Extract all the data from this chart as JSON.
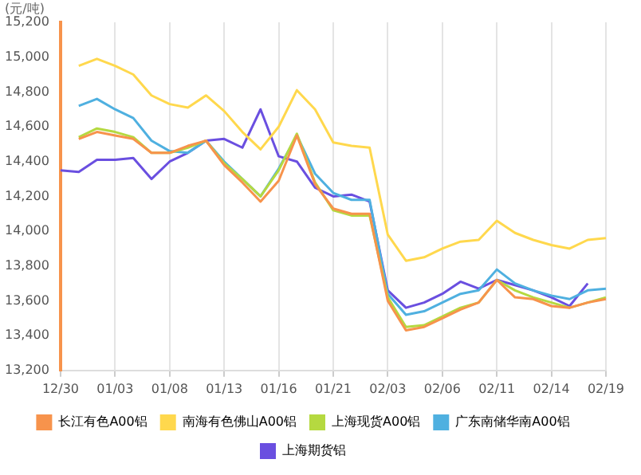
{
  "chart_data": {
    "type": "line",
    "ylabel": "(元/吨)",
    "categories": [
      "12/30",
      null,
      null,
      "01/03",
      null,
      null,
      "01/08",
      null,
      null,
      "01/13",
      null,
      null,
      "01/16",
      null,
      null,
      "01/21",
      null,
      null,
      "02/03",
      null,
      null,
      "02/06",
      null,
      null,
      "02/11",
      null,
      null,
      "02/14",
      null,
      null,
      "02/19"
    ],
    "series": [
      {
        "name": "长江有色A00铝",
        "color": "#f7934c",
        "values": [
          null,
          14530,
          14570,
          14550,
          14530,
          14450,
          14450,
          14490,
          14520,
          14380,
          14280,
          14170,
          14290,
          14550,
          14270,
          14130,
          14100,
          14100,
          13600,
          13430,
          13450,
          13500,
          13550,
          13590,
          13720,
          13620,
          13610,
          13570,
          13560,
          13590,
          13610
        ]
      },
      {
        "name": "南海有色佛山A00铝",
        "color": "#ffd84d",
        "values": [
          null,
          14950,
          14990,
          14950,
          14900,
          14780,
          14730,
          14710,
          14780,
          14690,
          14570,
          14470,
          14600,
          14810,
          14700,
          14510,
          14490,
          14480,
          13980,
          13830,
          13850,
          13900,
          13940,
          13950,
          14060,
          13990,
          13950,
          13920,
          13900,
          13950,
          13960
        ]
      },
      {
        "name": "上海现货A00铝",
        "color": "#b5d940",
        "values": [
          null,
          14540,
          14590,
          14570,
          14540,
          14450,
          14450,
          14480,
          14520,
          14390,
          14300,
          14200,
          14350,
          14560,
          14280,
          14120,
          14090,
          14090,
          13620,
          13450,
          13460,
          13510,
          13560,
          13590,
          13720,
          13660,
          13620,
          13590,
          13560,
          13590,
          13620
        ]
      },
      {
        "name": "广东南储华南A00铝",
        "color": "#4fb0e0",
        "values": [
          null,
          14720,
          14760,
          14700,
          14650,
          14520,
          14460,
          14450,
          14520,
          14400,
          14300,
          14200,
          14360,
          14550,
          14330,
          14220,
          14180,
          14180,
          13640,
          13520,
          13540,
          13590,
          13640,
          13660,
          13780,
          13700,
          13660,
          13630,
          13610,
          13660,
          13670
        ]
      },
      {
        "name": "上海期货铝",
        "color": "#6a4fe0",
        "values": [
          14350,
          14340,
          14410,
          14410,
          14420,
          14300,
          14400,
          14450,
          14520,
          14530,
          14480,
          14700,
          14430,
          14400,
          14250,
          14200,
          14210,
          14170,
          13660,
          13560,
          13590,
          13640,
          13710,
          13670,
          13720,
          13690,
          13660,
          13620,
          13570,
          13700,
          null
        ]
      }
    ],
    "ylim": [
      13200,
      15200
    ],
    "yticks": [
      {
        "value": 13200,
        "label": "13,200"
      },
      {
        "value": 13400,
        "label": "13,400"
      },
      {
        "value": 13600,
        "label": "13,600"
      },
      {
        "value": 13800,
        "label": "13,800"
      },
      {
        "value": 14000,
        "label": "14,000"
      },
      {
        "value": 14200,
        "label": "14,200"
      },
      {
        "value": 14400,
        "label": "14,400"
      },
      {
        "value": 14600,
        "label": "14,600"
      },
      {
        "value": 14800,
        "label": "14,800"
      },
      {
        "value": 15000,
        "label": "15,000"
      },
      {
        "value": 15200,
        "label": "15,200"
      }
    ],
    "grid": "x",
    "legend": "bottom",
    "marker": "none",
    "line_style": "solid"
  }
}
